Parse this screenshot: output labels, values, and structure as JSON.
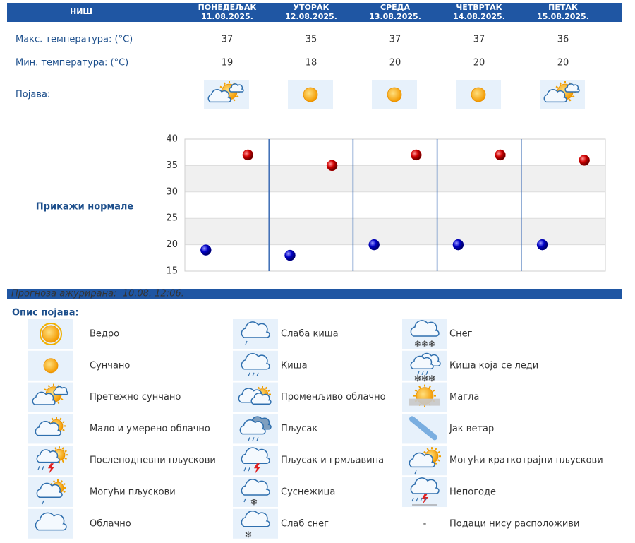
{
  "header": {
    "city": "НИШ",
    "days": [
      {
        "name": "ПОНЕДЕЉАК",
        "date": "11.08.2025."
      },
      {
        "name": "УТОРАК",
        "date": "12.08.2025."
      },
      {
        "name": "СРЕДА",
        "date": "13.08.2025."
      },
      {
        "name": "ЧЕТВРТАК",
        "date": "14.08.2025."
      },
      {
        "name": "ПЕТАК",
        "date": "15.08.2025."
      }
    ]
  },
  "table": {
    "rows": [
      {
        "label": "Макс. температура: (°C)",
        "values": [
          37,
          35,
          37,
          37,
          36
        ]
      },
      {
        "label": "Мин. температура: (°C)",
        "values": [
          19,
          18,
          20,
          20,
          20
        ]
      },
      {
        "label": "Појава:"
      }
    ]
  },
  "chart_link": "Прикажи нормале",
  "chart_data": {
    "type": "scatter",
    "series": [
      {
        "color": "#cc0000",
        "values": [
          37,
          35,
          37,
          37,
          36
        ]
      },
      {
        "color": "#0000aa",
        "values": [
          19,
          18,
          20,
          20,
          20
        ]
      }
    ],
    "ylim": [
      15,
      40
    ],
    "yticks": [
      15,
      20,
      25,
      30,
      35,
      40
    ],
    "grid": true
  },
  "footer": "Прогноза ажурирана:  10.08. 12:06.",
  "legend": {
    "title": "Опис појава:",
    "items": [
      {
        "label": "Ведро"
      },
      {
        "label": "Сунчано"
      },
      {
        "label": "Претежно сунчано"
      },
      {
        "label": "Мало и умерено облачно"
      },
      {
        "label": "Послеподневни пљускови"
      },
      {
        "label": "Могући пљускови"
      },
      {
        "label": "Облачно"
      },
      {
        "label": "Слаба киша"
      },
      {
        "label": "Киша"
      },
      {
        "label": "Променљиво облачно"
      },
      {
        "label": "Пљусак"
      },
      {
        "label": "Пљусак и грмљавина"
      },
      {
        "label": "Суснежица"
      },
      {
        "label": "Слаб снег"
      },
      {
        "label": "Снег"
      },
      {
        "label": "Киша која се леди"
      },
      {
        "label": "Магла"
      },
      {
        "label": "Јак ветар"
      },
      {
        "label": "Могући краткотрајни пљускови"
      },
      {
        "label": "Непогоде"
      },
      {
        "symbol": "-",
        "label": "Подаци нису расположиви"
      }
    ]
  }
}
